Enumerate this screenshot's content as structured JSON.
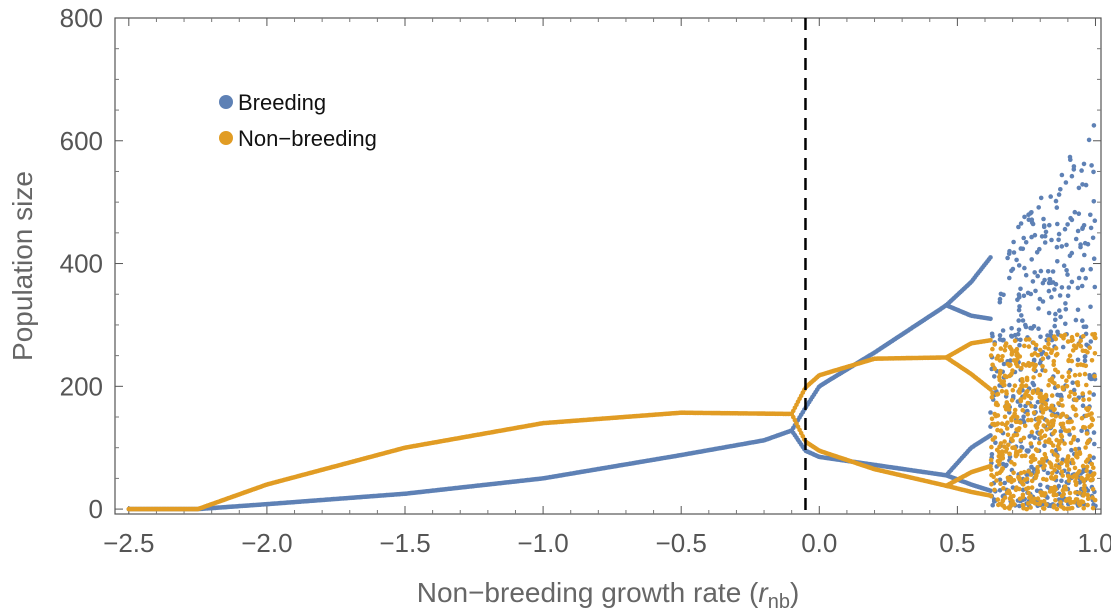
{
  "chart_data": {
    "type": "scatter",
    "title": "",
    "xlabel": "Non−breeding growth rate (",
    "xlabel_italic": "r",
    "xlabel_sub": "nb",
    "xlabel_end": ")",
    "ylabel": "Population size",
    "xlim": [
      -2.55,
      1.02
    ],
    "ylim": [
      -8,
      800
    ],
    "x_ticks": [
      -2.5,
      -2.0,
      -1.5,
      -1.0,
      -0.5,
      0.0,
      0.5,
      1.0
    ],
    "x_tick_labels": [
      "−2.5",
      "−2.0",
      "−1.5",
      "−1.0",
      "−0.5",
      "0.0",
      "0.5",
      "1.0"
    ],
    "y_ticks": [
      0,
      200,
      400,
      600,
      800
    ],
    "y_tick_labels": [
      "0",
      "200",
      "400",
      "600",
      "800"
    ],
    "grid": false,
    "legend_position": "top-left",
    "reference_line": {
      "x": -0.05,
      "style": "dashed"
    },
    "series": [
      {
        "name": "Breeding",
        "color": "#5e81b5",
        "curves": [
          {
            "x": [
              -2.5,
              -2.25,
              -2.0,
              -1.5,
              -1.0,
              -0.5,
              -0.2,
              -0.1
            ],
            "y": [
              0,
              0,
              8,
              25,
              50,
              88,
              112,
              128
            ]
          },
          {
            "x": [
              -0.1,
              -0.05,
              0.0,
              0.2,
              0.46
            ],
            "y": [
              128,
              165,
              200,
              255,
              332
            ]
          },
          {
            "x": [
              -0.1,
              -0.05,
              0.0,
              0.2,
              0.46
            ],
            "y": [
              128,
              95,
              85,
              72,
              55
            ]
          },
          {
            "x": [
              0.46,
              0.55,
              0.62
            ],
            "y": [
              332,
              315,
              310
            ]
          },
          {
            "x": [
              0.46,
              0.55,
              0.62
            ],
            "y": [
              332,
              370,
              410
            ]
          },
          {
            "x": [
              0.46,
              0.55,
              0.62
            ],
            "y": [
              55,
              100,
              120
            ]
          },
          {
            "x": [
              0.46,
              0.55,
              0.62
            ],
            "y": [
              55,
              40,
              30
            ]
          }
        ],
        "chaotic_region": {
          "x_range": [
            0.62,
            1.0
          ],
          "y_range": [
            5,
            640
          ]
        }
      },
      {
        "name": "Non−breeding",
        "color": "#e19c24",
        "curves": [
          {
            "x": [
              -2.5,
              -2.25,
              -2.0,
              -1.5,
              -1.0,
              -0.5,
              -0.1
            ],
            "y": [
              0,
              0,
              40,
              100,
              140,
              157,
              155
            ]
          },
          {
            "x": [
              -0.1,
              -0.05,
              0.0,
              0.2,
              0.46
            ],
            "y": [
              155,
              198,
              218,
              245,
              247
            ]
          },
          {
            "x": [
              -0.1,
              -0.05,
              0.0,
              0.2,
              0.46
            ],
            "y": [
              155,
              110,
              95,
              65,
              38
            ]
          },
          {
            "x": [
              0.46,
              0.55,
              0.62
            ],
            "y": [
              247,
              270,
              275
            ]
          },
          {
            "x": [
              0.46,
              0.55,
              0.62
            ],
            "y": [
              247,
              220,
              195
            ]
          },
          {
            "x": [
              0.46,
              0.55,
              0.62
            ],
            "y": [
              38,
              60,
              70
            ]
          },
          {
            "x": [
              0.46,
              0.55,
              0.62
            ],
            "y": [
              38,
              28,
              22
            ]
          }
        ],
        "chaotic_region": {
          "x_range": [
            0.62,
            1.0
          ],
          "y_range": [
            0,
            290
          ]
        }
      }
    ]
  }
}
